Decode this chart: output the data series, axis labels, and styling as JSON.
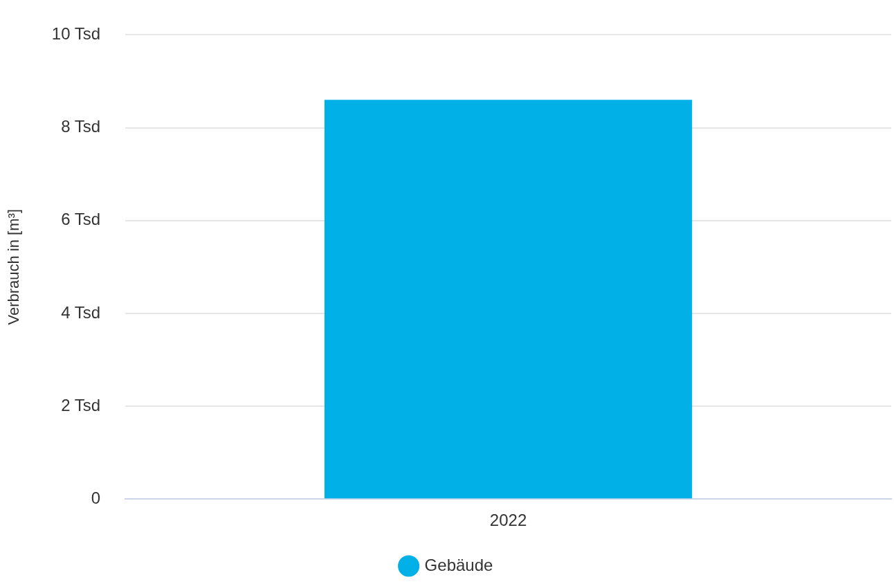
{
  "chart_data": {
    "type": "bar",
    "ylabel": "Verbrauch in [m³]",
    "categories": [
      "2022"
    ],
    "series": [
      {
        "name": "Gebäude",
        "color": "#00b0e6",
        "values": [
          8.6
        ]
      }
    ],
    "ylim": [
      0,
      10
    ],
    "yticks": [
      0,
      {
        "value": 2,
        "label": "2 Tsd"
      },
      {
        "value": 4,
        "label": "4 Tsd"
      },
      {
        "value": 6,
        "label": "6 Tsd"
      },
      {
        "value": 8,
        "label": "8 Tsd"
      },
      {
        "value": 10,
        "label": "10 Tsd"
      }
    ],
    "grid": "y",
    "legend": "bottom"
  }
}
